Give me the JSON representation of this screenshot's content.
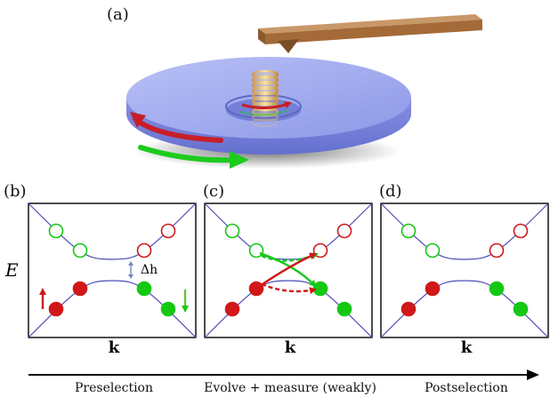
{
  "panel_labels": {
    "a": "(a)",
    "b": "(b)",
    "c": "(c)",
    "d": "(d)"
  },
  "axis": {
    "energy_label": "E",
    "momentum_label": "k"
  },
  "gap_label": "Δh",
  "stages": {
    "pre": "Preselection",
    "evolve": "Evolve + measure (weakly)",
    "post": "Postselection"
  },
  "colors": {
    "red": "#d01818",
    "green": "#14c814",
    "band": "#4b4bb8",
    "disk": "#9aa6ee",
    "plate": "#b07a45",
    "coil": "#e8c070",
    "arrow_red": "#c81e28",
    "arrow_green": "#1ecb1e"
  }
}
